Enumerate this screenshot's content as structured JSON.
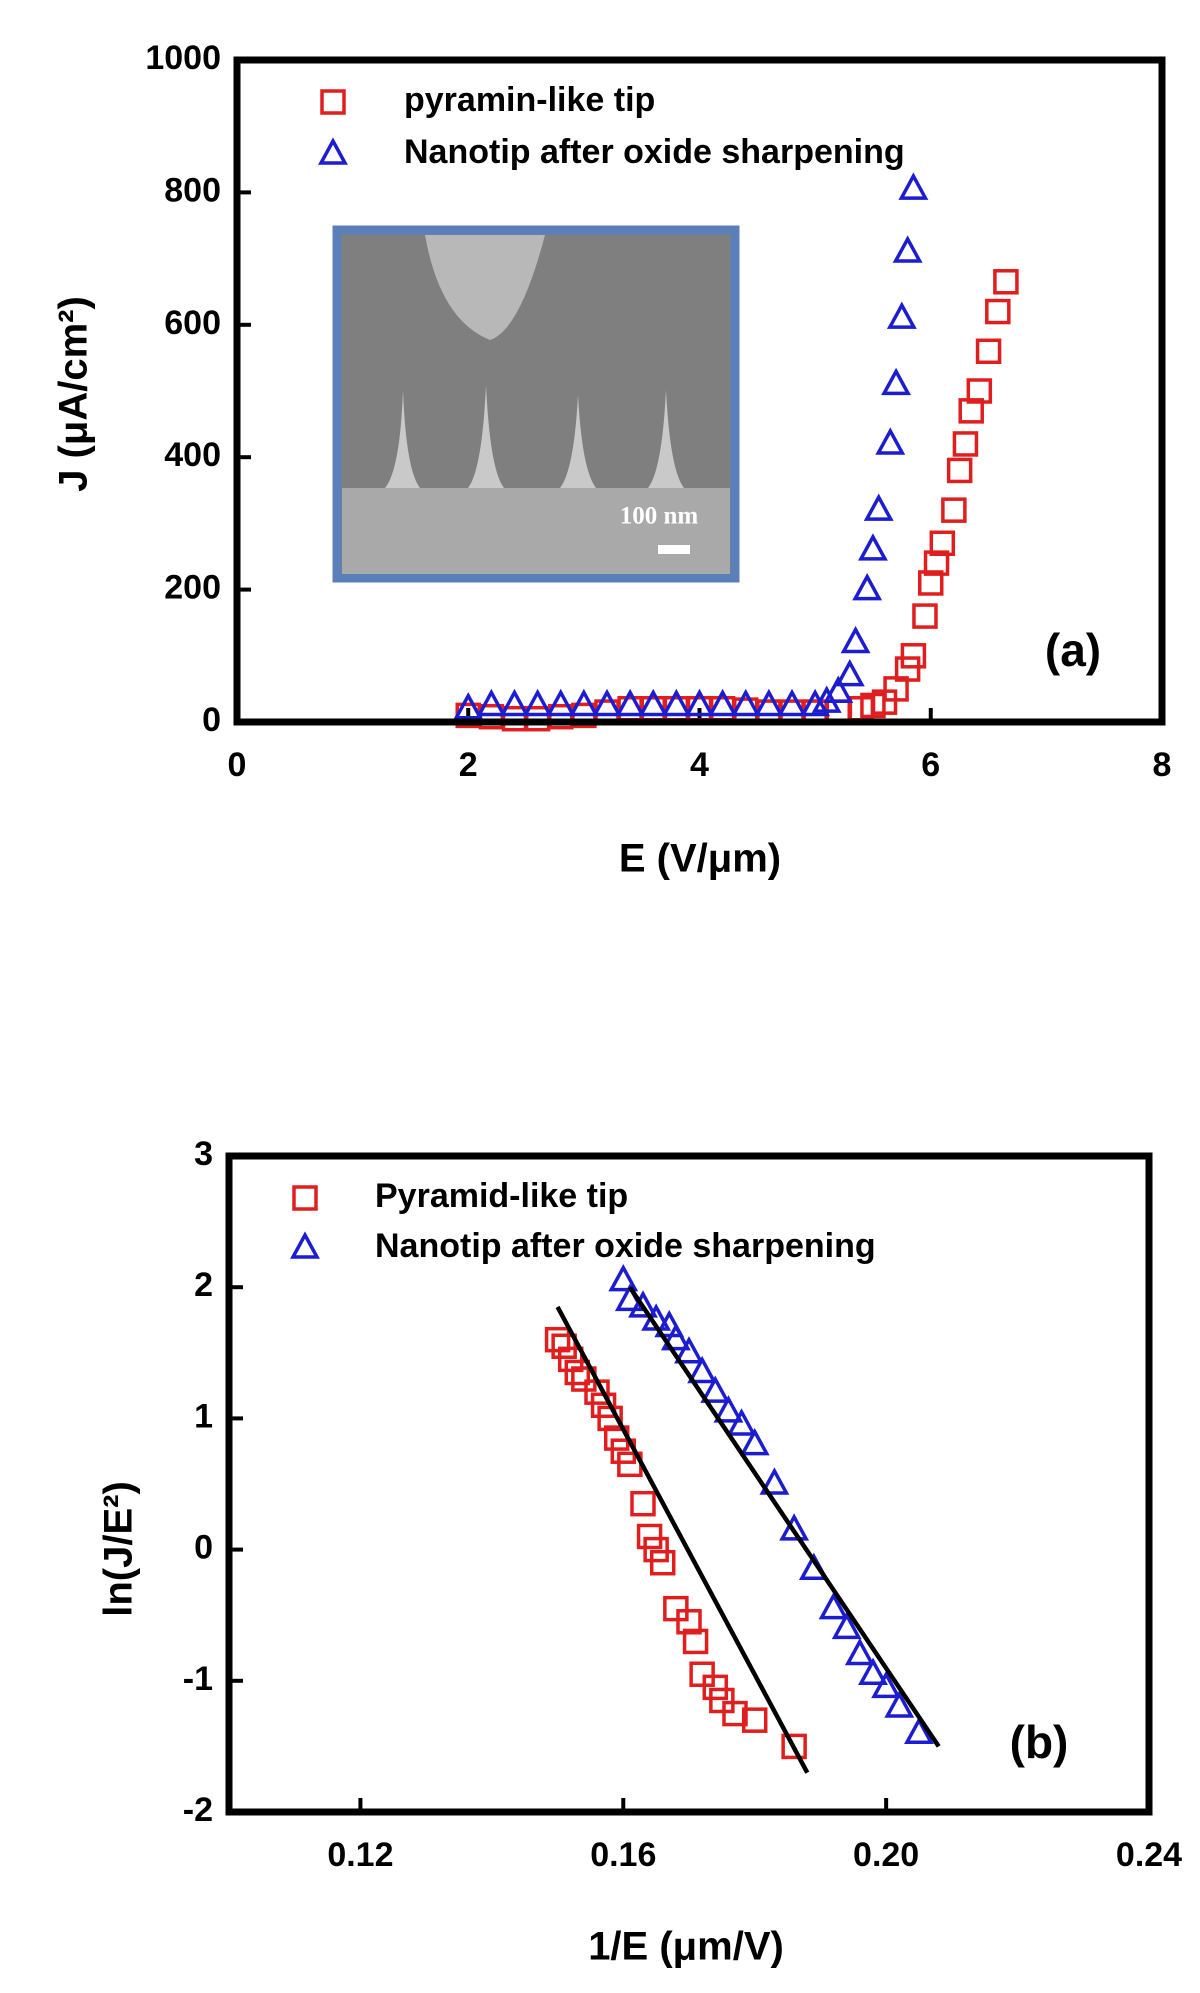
{
  "chart_data": [
    {
      "type": "scatter",
      "xlabel": "E (V/μm)",
      "ylabel": "J (μA/cm²)",
      "annotation": "(a)",
      "inset_label": "100 nm",
      "xlim": [
        0,
        8
      ],
      "xticks": [
        0,
        2,
        4,
        6,
        8
      ],
      "ylim": [
        0,
        1000
      ],
      "yticks": [
        0,
        200,
        400,
        600,
        800,
        1000
      ],
      "legend": "upper left",
      "series": [
        {
          "name": "pyramin-like tip",
          "color": "#e01e1e",
          "marker": "square",
          "x": [
            2.0,
            2.2,
            2.4,
            2.6,
            2.8,
            3.0,
            3.2,
            3.4,
            3.6,
            3.8,
            4.0,
            4.2,
            4.4,
            4.6,
            4.8,
            5.0,
            5.2,
            5.4,
            5.5,
            5.6,
            5.7,
            5.8,
            5.85,
            5.95,
            6.0,
            6.05,
            6.1,
            6.2,
            6.25,
            6.3,
            6.35,
            6.42,
            6.5,
            6.58,
            6.65
          ],
          "values": [
            10,
            8,
            5,
            5,
            8,
            10,
            15,
            20,
            20,
            20,
            20,
            20,
            18,
            15,
            15,
            15,
            15,
            20,
            25,
            30,
            50,
            80,
            100,
            160,
            210,
            240,
            270,
            320,
            380,
            420,
            470,
            500,
            560,
            620,
            665
          ]
        },
        {
          "name": "Nanotip after oxide sharpening",
          "color": "#1c1cd0",
          "marker": "triangle",
          "x": [
            2.0,
            2.2,
            2.4,
            2.6,
            2.8,
            3.0,
            3.2,
            3.4,
            3.6,
            3.8,
            4.0,
            4.2,
            4.4,
            4.6,
            4.8,
            5.0,
            5.1,
            5.2,
            5.3,
            5.35,
            5.45,
            5.5,
            5.55,
            5.65,
            5.7,
            5.75,
            5.8,
            5.85
          ],
          "values": [
            20,
            25,
            25,
            25,
            25,
            25,
            25,
            25,
            25,
            25,
            25,
            25,
            25,
            25,
            25,
            25,
            30,
            45,
            70,
            120,
            200,
            260,
            320,
            420,
            510,
            610,
            710,
            805
          ]
        }
      ]
    },
    {
      "type": "scatter",
      "xlabel": "1/E (μm/V)",
      "ylabel": "ln(J/E²)",
      "annotation": "(b)",
      "xlim": [
        0.1,
        0.24
      ],
      "xticks": [
        0.12,
        0.16,
        {
          "value": 0.2,
          "label": "0.20"
        },
        0.24
      ],
      "ylim": [
        -2,
        3
      ],
      "yticks": [
        -2,
        -1,
        0,
        1,
        2,
        3
      ],
      "legend": "upper left",
      "series": [
        {
          "name": "Pyramid-like tip",
          "color": "#e01e1e",
          "marker": "square",
          "x": [
            0.15,
            0.151,
            0.152,
            0.153,
            0.154,
            0.156,
            0.157,
            0.158,
            0.159,
            0.16,
            0.161,
            0.163,
            0.164,
            0.165,
            0.166,
            0.168,
            0.17,
            0.171,
            0.172,
            0.174,
            0.175,
            0.177,
            0.18,
            0.186
          ],
          "values": [
            1.6,
            1.55,
            1.45,
            1.35,
            1.3,
            1.2,
            1.1,
            1.0,
            0.85,
            0.75,
            0.65,
            0.35,
            0.1,
            0,
            -0.1,
            -0.45,
            -0.55,
            -0.7,
            -0.95,
            -1.05,
            -1.15,
            -1.25,
            -1.3,
            -1.5
          ]
        },
        {
          "name": "Nanotip after oxide sharpening",
          "color": "#1c1cd0",
          "marker": "triangle",
          "x": [
            0.16,
            0.161,
            0.163,
            0.165,
            0.167,
            0.168,
            0.17,
            0.172,
            0.174,
            0.176,
            0.178,
            0.18,
            0.183,
            0.186,
            0.189,
            0.192,
            0.194,
            0.196,
            0.198,
            0.2,
            0.202,
            0.205
          ],
          "values": [
            2.05,
            1.9,
            1.85,
            1.75,
            1.7,
            1.6,
            1.5,
            1.35,
            1.2,
            1.05,
            0.95,
            0.8,
            0.5,
            0.15,
            -0.15,
            -0.45,
            -0.6,
            -0.8,
            -0.95,
            -1.05,
            -1.2,
            -1.4
          ]
        }
      ],
      "fits": [
        {
          "color": "#000000",
          "x": [
            0.15,
            0.188
          ],
          "values": [
            1.85,
            -1.7
          ]
        },
        {
          "color": "#000000",
          "x": [
            0.161,
            0.208
          ],
          "values": [
            2.0,
            -1.5
          ]
        }
      ]
    }
  ]
}
